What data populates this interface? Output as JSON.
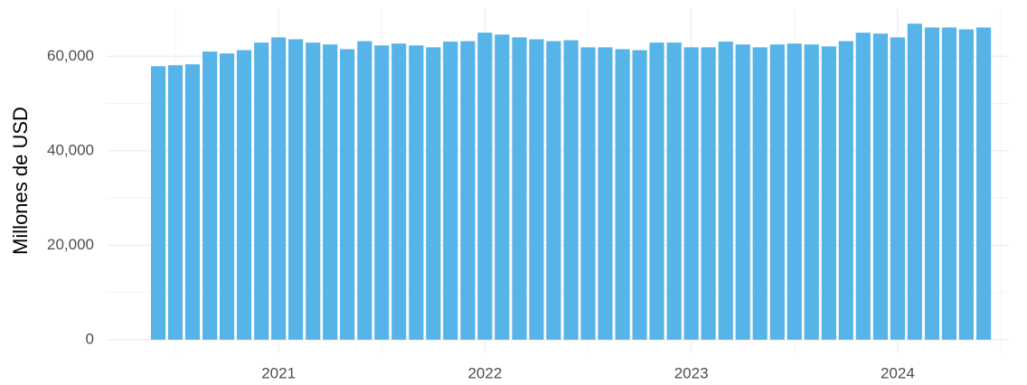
{
  "chart_data": {
    "type": "bar",
    "y_label": "Millones de USD",
    "color": "#56b4e9",
    "x": [
      2020.417,
      2020.5,
      2020.583,
      2020.667,
      2020.75,
      2020.833,
      2020.917,
      2021,
      2021.083,
      2021.167,
      2021.25,
      2021.333,
      2021.417,
      2021.5,
      2021.583,
      2021.667,
      2021.75,
      2021.833,
      2021.917,
      2022,
      2022.083,
      2022.167,
      2022.25,
      2022.333,
      2022.417,
      2022.5,
      2022.583,
      2022.667,
      2022.75,
      2022.833,
      2022.917,
      2023,
      2023.083,
      2023.167,
      2023.25,
      2023.333,
      2023.417,
      2023.5,
      2023.583,
      2023.667,
      2023.75,
      2023.833,
      2023.917,
      2024,
      2024.083,
      2024.167,
      2024.25,
      2024.333,
      2024.417
    ],
    "values": [
      57900,
      58100,
      58300,
      61000,
      60600,
      61300,
      62900,
      64000,
      63600,
      62900,
      62500,
      61500,
      63200,
      62300,
      62700,
      62300,
      61900,
      63100,
      63200,
      65000,
      64600,
      64000,
      63600,
      63200,
      63400,
      61900,
      61900,
      61500,
      61300,
      62900,
      62900,
      61900,
      61900,
      63100,
      62500,
      61900,
      62500,
      62700,
      62500,
      62100,
      63200,
      65000,
      64800,
      64000,
      66900,
      66100,
      66100,
      65700,
      66100
    ],
    "xlim": [
      2020.167,
      2024.535
    ],
    "xticks": [
      2021,
      2022,
      2023,
      2024
    ],
    "minor_xticks": [
      2020.5,
      2021.5,
      2022.5,
      2023.5,
      2024.5
    ],
    "ylim": [
      -2700,
      70000
    ],
    "yticks": [
      0,
      {
        "value": 20000,
        "label": "20,000"
      },
      {
        "value": 40000,
        "label": "40,000"
      },
      {
        "value": 60000,
        "label": "60,000"
      }
    ],
    "minor_yticks": [
      10000,
      30000,
      50000
    ],
    "grid": true
  }
}
